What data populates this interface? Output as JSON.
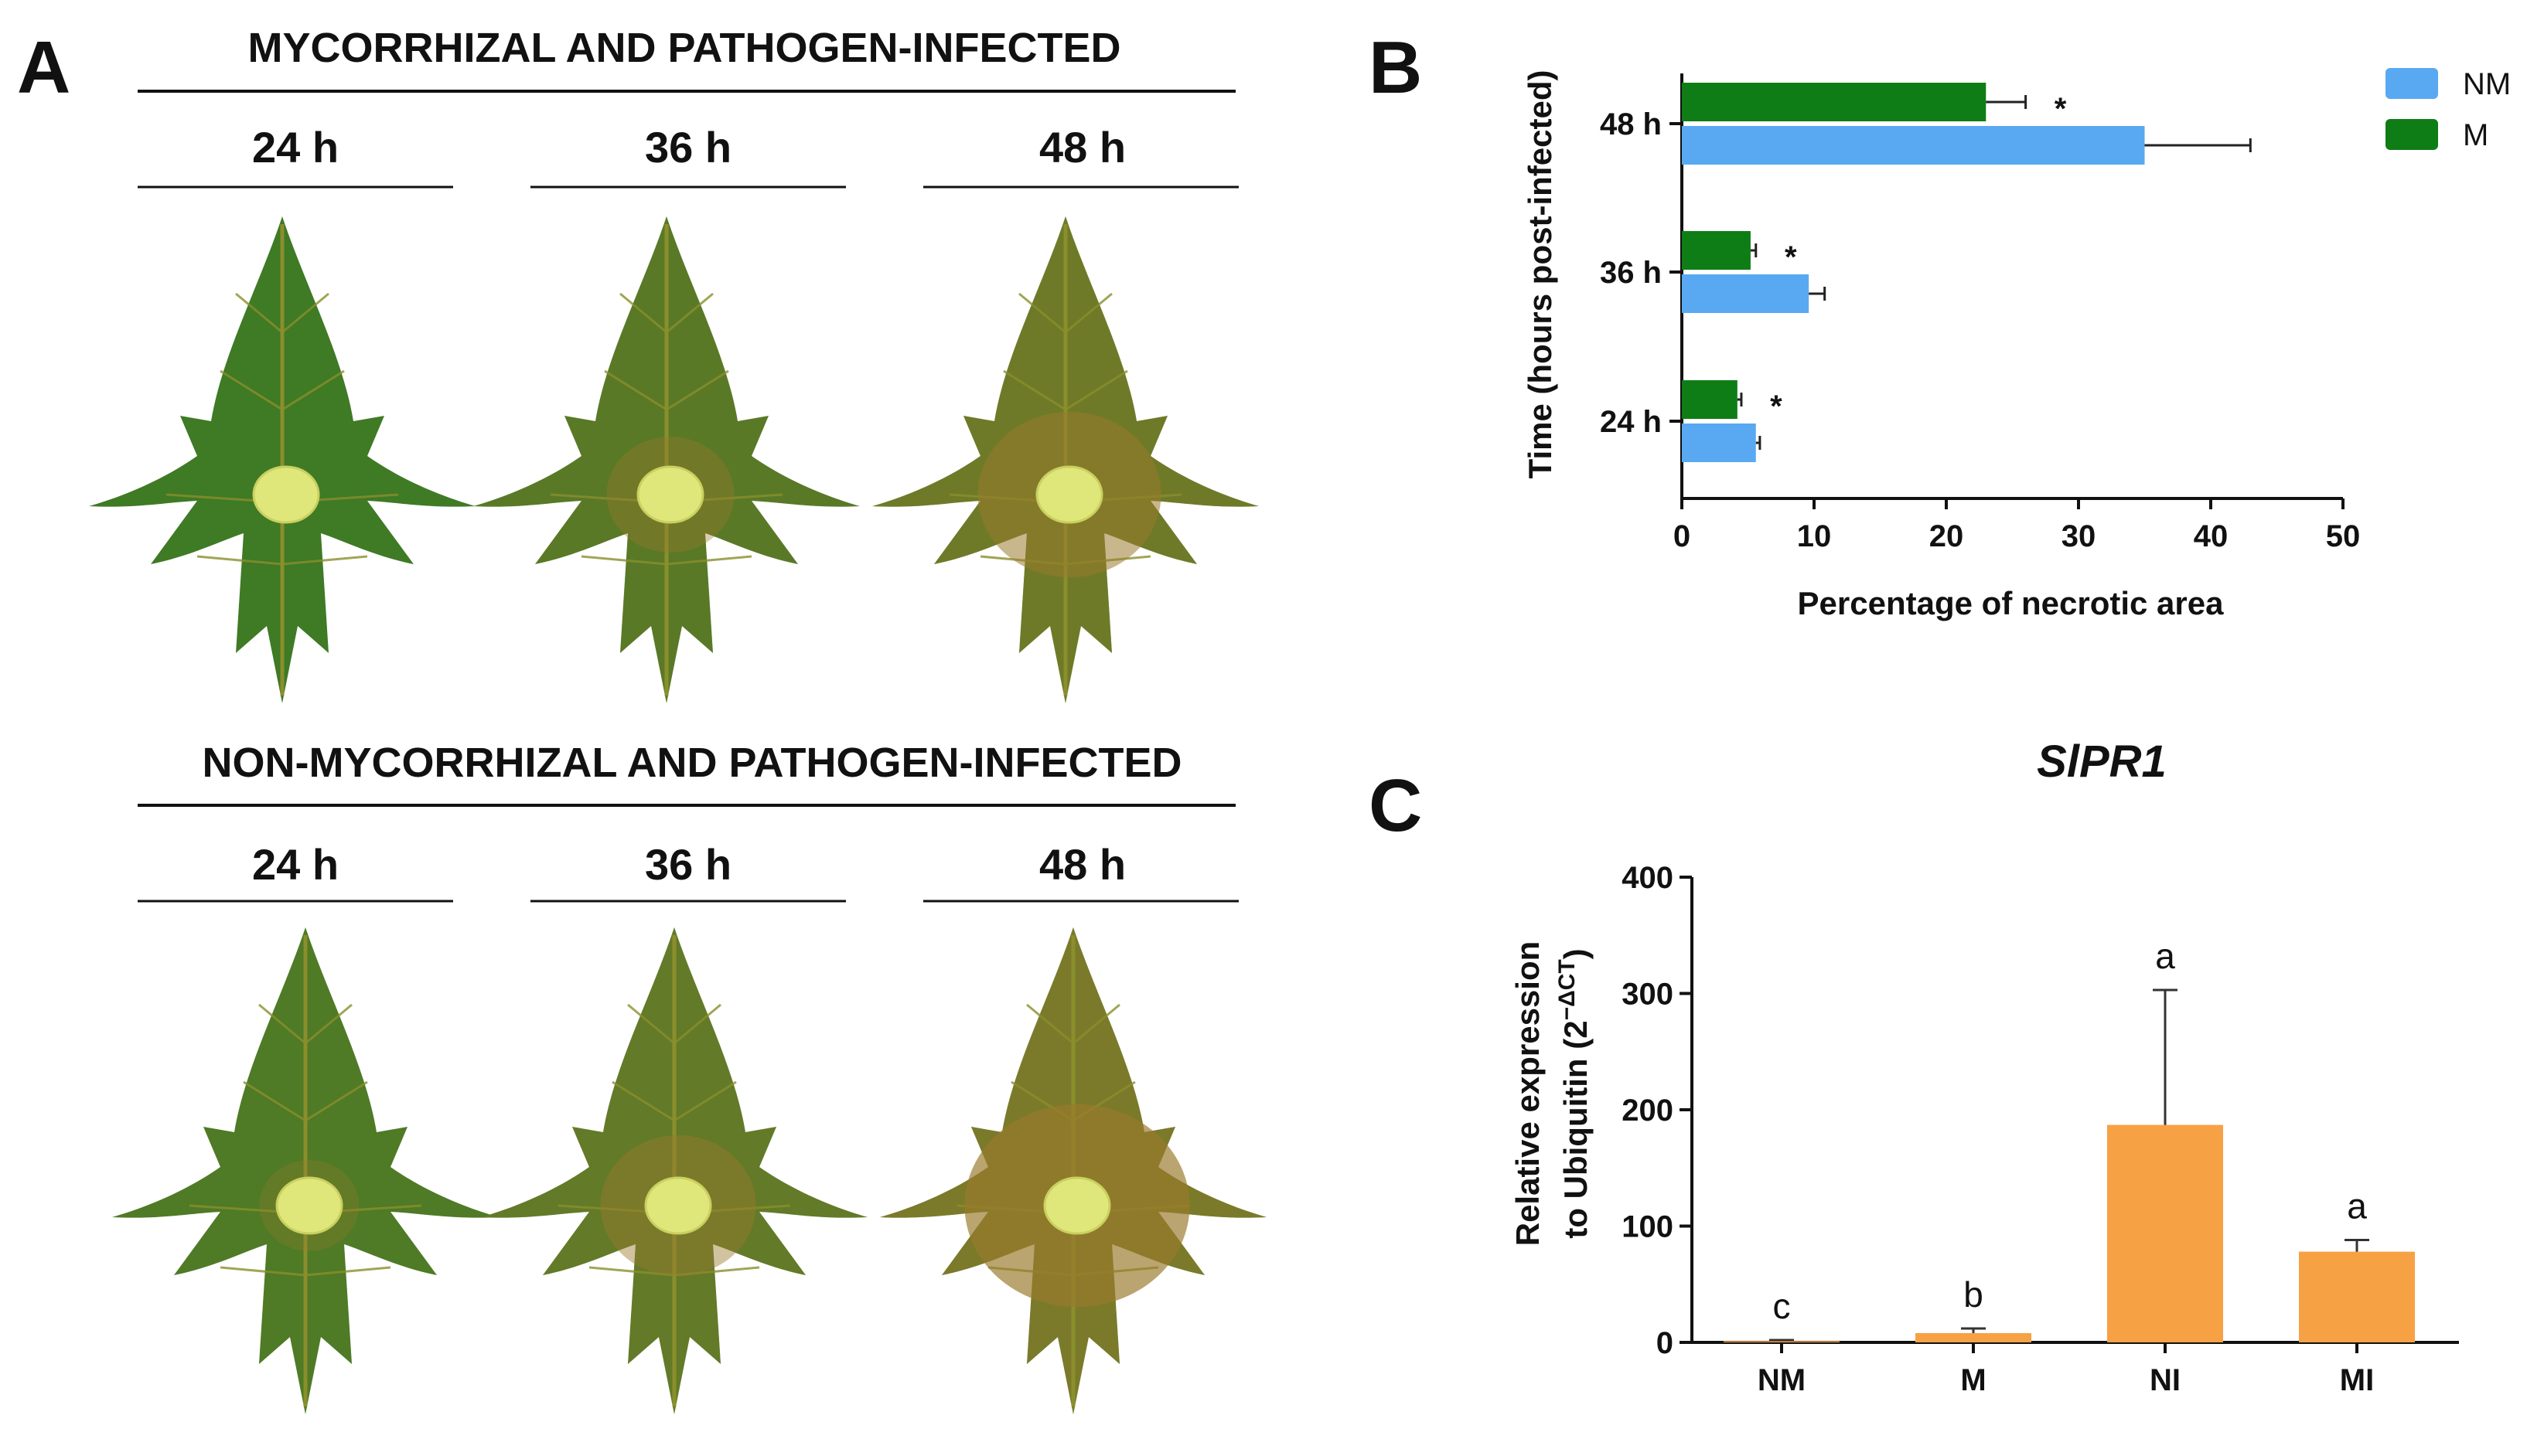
{
  "panels": {
    "a_letter": "A",
    "b_letter": "B",
    "c_letter": "C"
  },
  "panel_a": {
    "top_header": "MYCORRHIZAL AND PATHOGEN-INFECTED",
    "bottom_header": "NON-MYCORRHIZAL AND PATHOGEN-INFECTED",
    "top_times": [
      "24 h",
      "36 h",
      "48 h"
    ],
    "bottom_times": [
      "24 h",
      "36 h",
      "48 h"
    ],
    "leaf_colors": {
      "healthy": "#3f7a25",
      "vein": "#8a8f2c",
      "lesion": "#dfe77a",
      "necrosis": "#9a7a2c"
    },
    "necrosis_levels_top": [
      0.0,
      0.25,
      0.65
    ],
    "necrosis_levels_bottom": [
      0.05,
      0.45,
      0.95
    ]
  },
  "chart_data": [
    {
      "type": "bar",
      "orientation": "horizontal",
      "title": "",
      "xlabel": "Percentage of necrotic area",
      "ylabel": "Time (hours post-infected)",
      "categories": [
        "48 h",
        "36 h",
        "24 h"
      ],
      "xlim": [
        0,
        50
      ],
      "xticks": [
        "0",
        "10",
        "20",
        "30",
        "40",
        "50"
      ],
      "series": [
        {
          "name": "M",
          "color": "#0e7d15",
          "values": [
            23,
            5.2,
            4.2
          ],
          "errors": [
            3,
            0.4,
            0.3
          ]
        },
        {
          "name": "NM",
          "color": "#58a9f2",
          "values": [
            35,
            9.6,
            5.6
          ],
          "errors": [
            8,
            1.2,
            0.3
          ]
        }
      ],
      "legend": [
        "NM",
        "M"
      ],
      "annotations": [
        "*",
        "*",
        "*"
      ],
      "legend_position": "top-right"
    },
    {
      "type": "bar",
      "title": "SlPR1",
      "xlabel": "",
      "ylabel_line1": "Relative expression",
      "ylabel_line2": "to Ubiquitin (2",
      "ylabel_sup": "−ΔCT",
      "ylabel_end": ")",
      "categories": [
        "NM",
        "M",
        "NI",
        "MI"
      ],
      "values": [
        1,
        8,
        187,
        78
      ],
      "errors": [
        1,
        4,
        116,
        10
      ],
      "letters": [
        "c",
        "b",
        "a",
        "a"
      ],
      "ylim": [
        0,
        400
      ],
      "yticks": [
        "0",
        "100",
        "200",
        "300",
        "400"
      ],
      "color": "#f7a145"
    }
  ]
}
